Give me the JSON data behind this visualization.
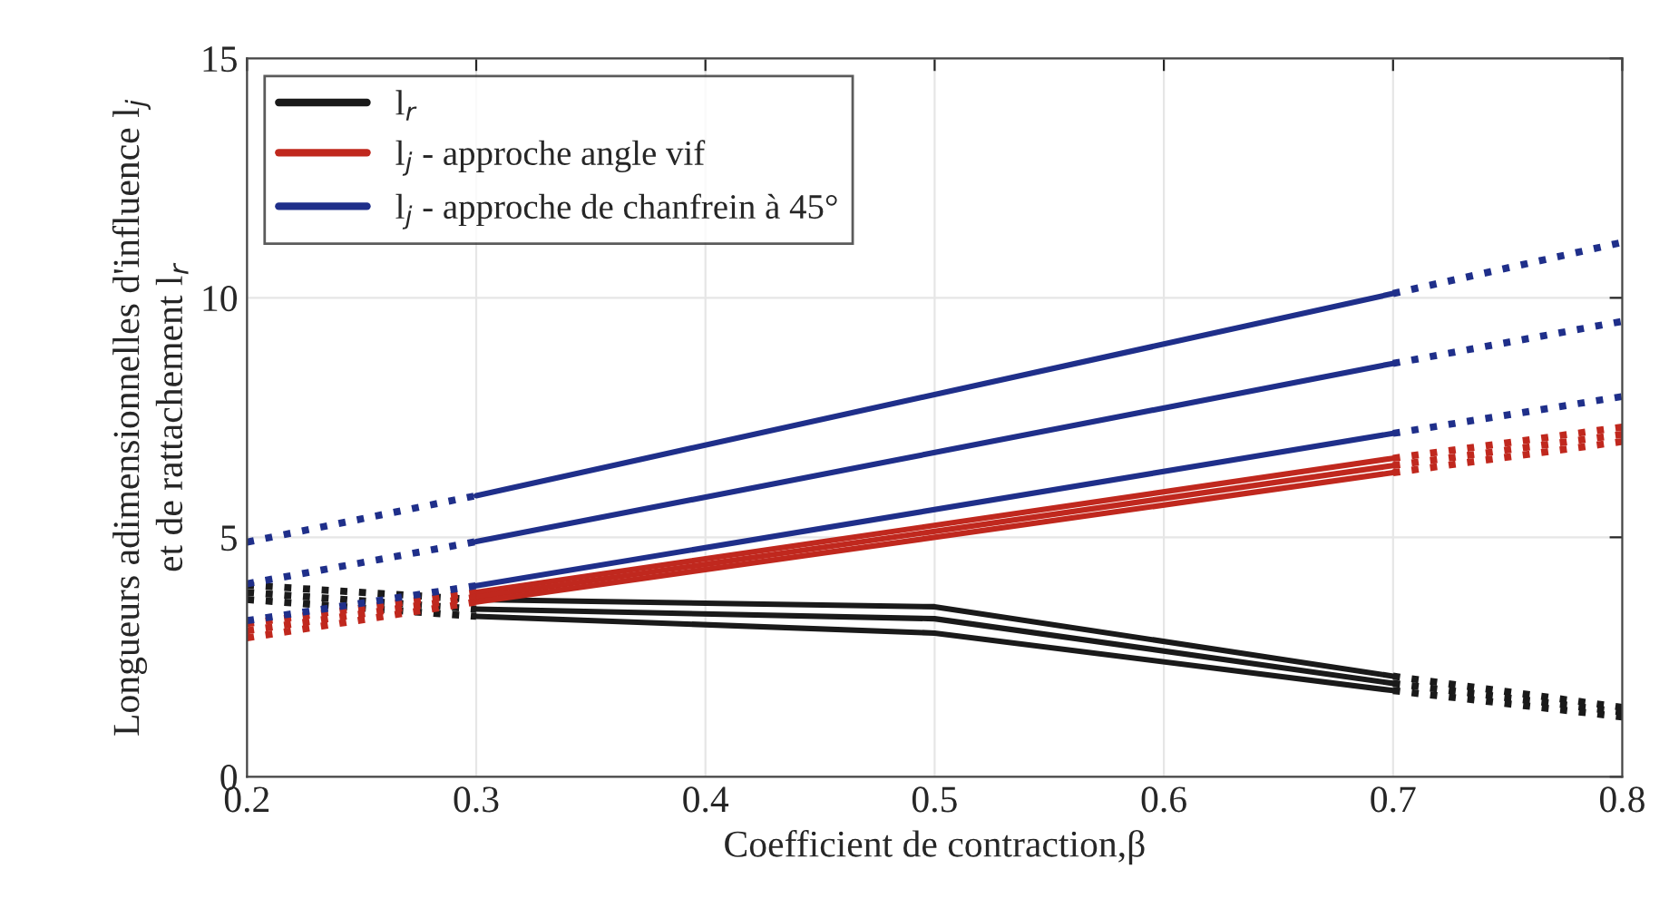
{
  "chart_data": {
    "type": "line",
    "xlabel": "Coefficient de contraction,β",
    "ylabel": "Longueurs adimensionnelles d'influence l$_{j}$\net de rattachement l$_{r}$",
    "xlim": [
      0.2,
      0.8
    ],
    "xticks": [
      {
        "value": 0.2,
        "label": "0.2"
      },
      {
        "value": 0.3,
        "label": "0.3"
      },
      {
        "value": 0.4,
        "label": "0.4"
      },
      {
        "value": 0.5,
        "label": "0.5"
      },
      {
        "value": 0.6,
        "label": "0.6"
      },
      {
        "value": 0.7,
        "label": "0.7"
      },
      {
        "value": 0.8,
        "label": "0.8"
      }
    ],
    "ylim": [
      0,
      15
    ],
    "yticks": [
      0,
      5,
      10,
      15
    ],
    "grid": true,
    "legend": "top left",
    "series": [
      {
        "name": "l$_{r}$",
        "color": "#1a1a1a",
        "line_style": "solid",
        "x": [
          0.3,
          0.5,
          0.7
        ],
        "values": [
          3.7,
          3.55,
          2.1
        ]
      },
      {
        "color": "#1a1a1a",
        "line_style": "solid",
        "x": [
          0.3,
          0.5,
          0.7
        ],
        "values": [
          3.5,
          3.3,
          1.95
        ]
      },
      {
        "color": "#1a1a1a",
        "line_style": "solid",
        "x": [
          0.3,
          0.5,
          0.7
        ],
        "values": [
          3.35,
          3.0,
          1.8
        ]
      },
      {
        "color": "#1a1a1a",
        "line_style": "dotted",
        "x": [
          0.2,
          0.3
        ],
        "values": [
          4.0,
          3.7
        ]
      },
      {
        "color": "#1a1a1a",
        "line_style": "dotted",
        "x": [
          0.2,
          0.3
        ],
        "values": [
          3.85,
          3.5
        ]
      },
      {
        "color": "#1a1a1a",
        "line_style": "dotted",
        "x": [
          0.2,
          0.3
        ],
        "values": [
          3.7,
          3.35
        ]
      },
      {
        "color": "#1a1a1a",
        "line_style": "dotted",
        "x": [
          0.7,
          0.8
        ],
        "values": [
          2.1,
          1.45
        ]
      },
      {
        "color": "#1a1a1a",
        "line_style": "dotted",
        "x": [
          0.7,
          0.8
        ],
        "values": [
          1.95,
          1.35
        ]
      },
      {
        "color": "#1a1a1a",
        "line_style": "dotted",
        "x": [
          0.7,
          0.8
        ],
        "values": [
          1.8,
          1.25
        ]
      },
      {
        "name": "l$_{j}$ - approche angle vif",
        "color": "#c0281e",
        "line_style": "solid",
        "x": [
          0.3,
          0.7
        ],
        "values": [
          3.85,
          6.65
        ]
      },
      {
        "color": "#c0281e",
        "line_style": "solid",
        "x": [
          0.3,
          0.7
        ],
        "values": [
          3.75,
          6.5
        ]
      },
      {
        "color": "#c0281e",
        "line_style": "solid",
        "x": [
          0.3,
          0.7
        ],
        "values": [
          3.65,
          6.35
        ]
      },
      {
        "color": "#c0281e",
        "line_style": "dotted",
        "x": [
          0.2,
          0.3
        ],
        "values": [
          3.2,
          3.85
        ]
      },
      {
        "color": "#c0281e",
        "line_style": "dotted",
        "x": [
          0.2,
          0.3
        ],
        "values": [
          3.05,
          3.75
        ]
      },
      {
        "color": "#c0281e",
        "line_style": "dotted",
        "x": [
          0.2,
          0.3
        ],
        "values": [
          2.9,
          3.65
        ]
      },
      {
        "color": "#c0281e",
        "line_style": "dotted",
        "x": [
          0.7,
          0.8
        ],
        "values": [
          6.65,
          7.3
        ]
      },
      {
        "color": "#c0281e",
        "line_style": "dotted",
        "x": [
          0.7,
          0.8
        ],
        "values": [
          6.5,
          7.15
        ]
      },
      {
        "color": "#c0281e",
        "line_style": "dotted",
        "x": [
          0.7,
          0.8
        ],
        "values": [
          6.35,
          7.0
        ]
      },
      {
        "name": "l$_{j}$ - approche de chanfrein à 45°",
        "color": "#1f2f8a",
        "line_style": "solid",
        "x": [
          0.3,
          0.7
        ],
        "values": [
          5.87,
          10.09
        ]
      },
      {
        "color": "#1f2f8a",
        "line_style": "solid",
        "x": [
          0.3,
          0.7
        ],
        "values": [
          4.91,
          8.63
        ]
      },
      {
        "color": "#1f2f8a",
        "line_style": "solid",
        "x": [
          0.3,
          0.7
        ],
        "values": [
          3.99,
          7.17
        ]
      },
      {
        "color": "#1f2f8a",
        "line_style": "dotted",
        "x": [
          0.2,
          0.3
        ],
        "values": [
          4.9,
          5.87
        ]
      },
      {
        "color": "#1f2f8a",
        "line_style": "dotted",
        "x": [
          0.2,
          0.3
        ],
        "values": [
          4.03,
          4.91
        ]
      },
      {
        "color": "#1f2f8a",
        "line_style": "dotted",
        "x": [
          0.2,
          0.3
        ],
        "values": [
          3.26,
          3.99
        ]
      },
      {
        "color": "#1f2f8a",
        "line_style": "dotted",
        "x": [
          0.7,
          0.8
        ],
        "values": [
          10.09,
          11.16
        ]
      },
      {
        "color": "#1f2f8a",
        "line_style": "dotted",
        "x": [
          0.7,
          0.8
        ],
        "values": [
          8.63,
          9.51
        ]
      },
      {
        "color": "#1f2f8a",
        "line_style": "dotted",
        "x": [
          0.7,
          0.8
        ],
        "values": [
          7.17,
          7.94
        ]
      }
    ]
  }
}
